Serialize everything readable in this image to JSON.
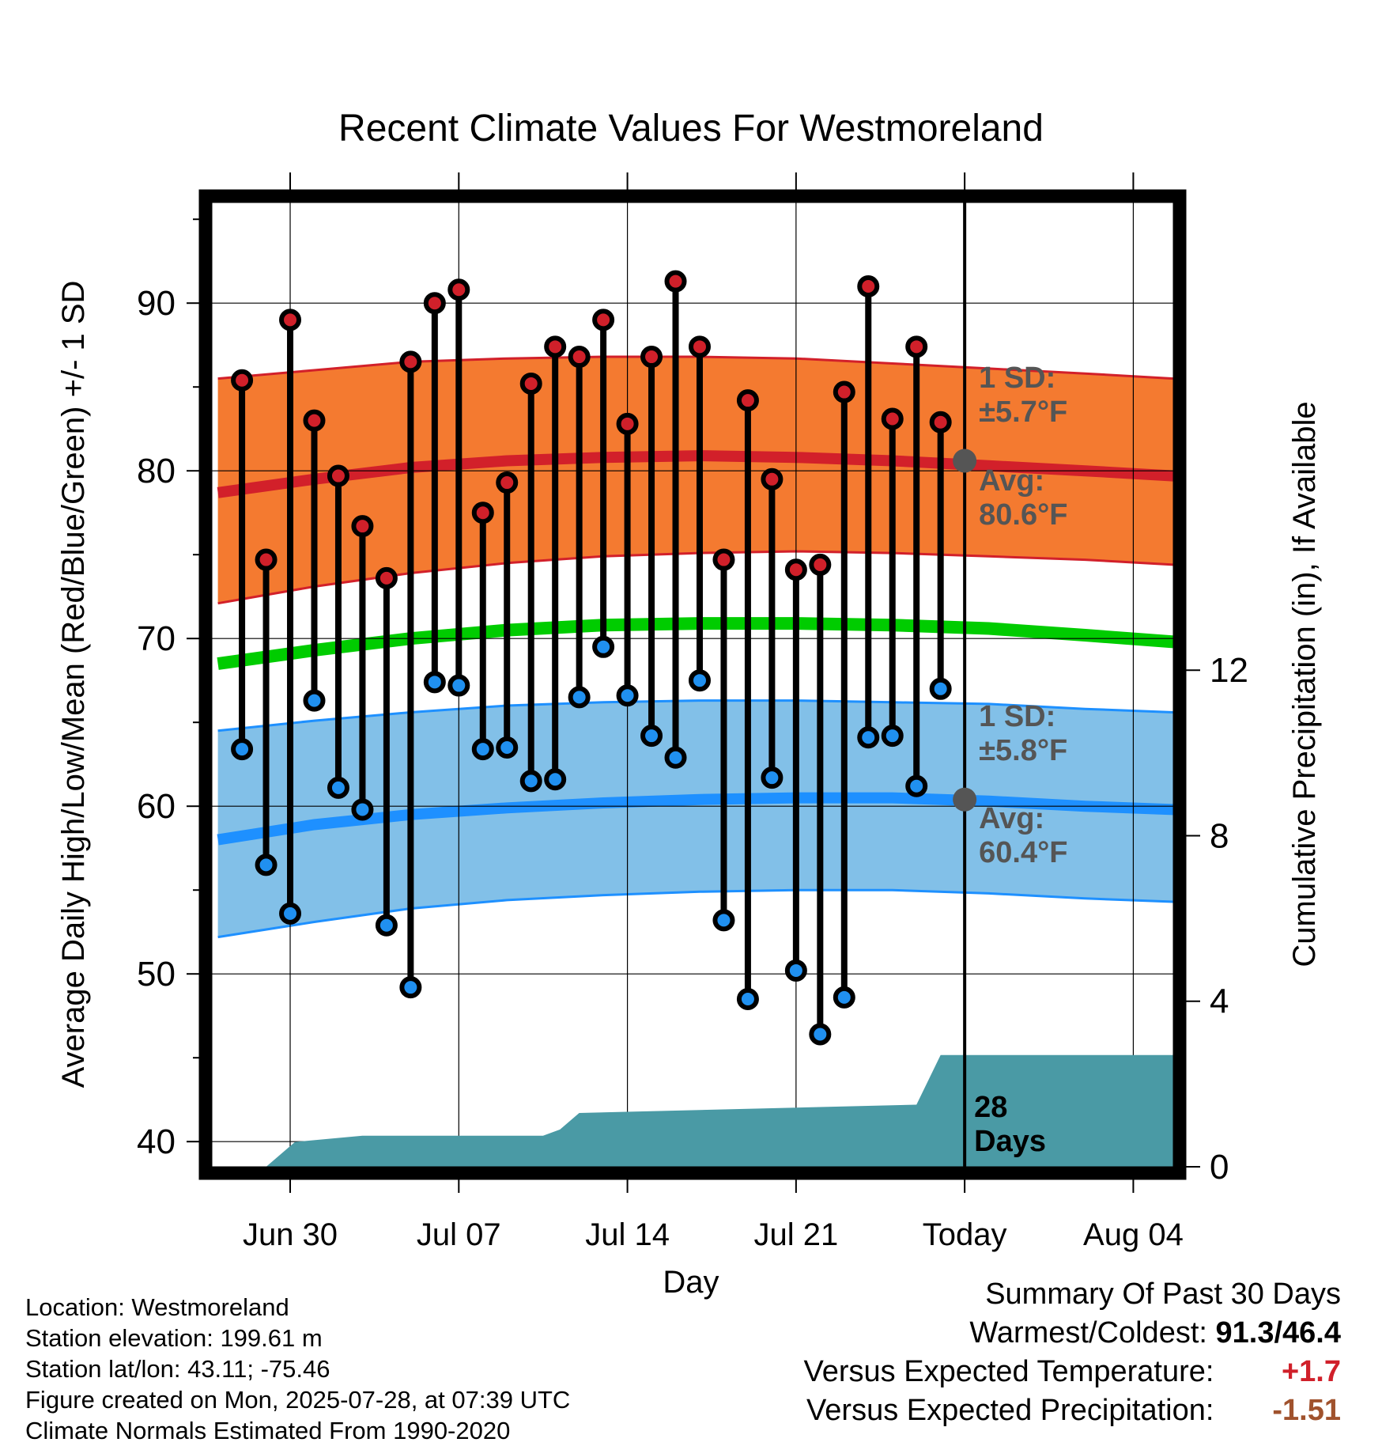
{
  "chart_data": {
    "type": "line",
    "title": "Recent Climate Values For Westmoreland",
    "xlabel": "Day",
    "ylabel": "Average Daily High/Low/Mean (Red/Blue/Green) +/- 1 SD",
    "y2label": "Cumulative Precipitation (in), If Available",
    "ylim": [
      38.5,
      96
    ],
    "y2lim": [
      0,
      23.3
    ],
    "yticks": [
      "40",
      "50",
      "60",
      "70",
      "80",
      "90"
    ],
    "y2ticks": [
      "0",
      "4",
      "8",
      "12"
    ],
    "xticks": [
      {
        "day": 3,
        "label": "Jun 30"
      },
      {
        "day": 10,
        "label": "Jul 07"
      },
      {
        "day": 17,
        "label": "Jul 14"
      },
      {
        "day": 24,
        "label": "Jul 21"
      },
      {
        "day": 31,
        "label": "Today"
      },
      {
        "day": 38,
        "label": "Aug 04"
      }
    ],
    "xlim": [
      -0.25,
      39.66
    ],
    "today_day": 31,
    "high_obs": [
      85.4,
      74.7,
      89.0,
      83.0,
      79.7,
      76.7,
      73.6,
      86.5,
      90.0,
      90.8,
      77.5,
      79.3,
      85.2,
      87.4,
      86.8,
      89.0,
      82.8,
      86.8,
      91.3,
      87.4,
      74.7,
      84.2,
      79.5,
      74.1,
      74.4,
      84.7,
      91.0,
      83.1,
      87.4,
      82.9
    ],
    "low_obs": [
      63.4,
      56.5,
      53.6,
      66.3,
      61.1,
      59.8,
      52.9,
      49.2,
      67.4,
      67.2,
      63.4,
      63.5,
      61.5,
      61.6,
      66.5,
      69.5,
      66.6,
      64.2,
      62.9,
      67.5,
      53.2,
      48.5,
      61.7,
      50.2,
      46.4,
      48.6,
      64.1,
      64.2,
      61.2,
      67.0
    ],
    "high_normal": {
      "avg": [
        [
          0,
          78.7
        ],
        [
          4,
          79.5
        ],
        [
          8,
          80.2
        ],
        [
          12,
          80.6
        ],
        [
          16,
          80.8
        ],
        [
          20,
          80.9
        ],
        [
          24,
          80.8
        ],
        [
          28,
          80.6
        ],
        [
          32,
          80.3
        ],
        [
          36,
          80.0
        ],
        [
          39.66,
          79.7
        ]
      ],
      "upper": [
        [
          0,
          85.5
        ],
        [
          4,
          86.0
        ],
        [
          8,
          86.5
        ],
        [
          12,
          86.7
        ],
        [
          16,
          86.8
        ],
        [
          20,
          86.8
        ],
        [
          24,
          86.7
        ],
        [
          28,
          86.4
        ],
        [
          32,
          86.1
        ],
        [
          36,
          85.8
        ],
        [
          39.66,
          85.5
        ]
      ],
      "lower": [
        [
          0,
          72.1
        ],
        [
          4,
          73.1
        ],
        [
          8,
          73.9
        ],
        [
          12,
          74.5
        ],
        [
          16,
          74.9
        ],
        [
          20,
          75.1
        ],
        [
          24,
          75.2
        ],
        [
          28,
          75.1
        ],
        [
          32,
          74.9
        ],
        [
          36,
          74.7
        ],
        [
          39.66,
          74.4
        ]
      ]
    },
    "mean_normal": [
      [
        0,
        68.5
      ],
      [
        4,
        69.3
      ],
      [
        8,
        70.0
      ],
      [
        12,
        70.5
      ],
      [
        16,
        70.8
      ],
      [
        20,
        70.9
      ],
      [
        24,
        70.9
      ],
      [
        28,
        70.8
      ],
      [
        32,
        70.6
      ],
      [
        36,
        70.2
      ],
      [
        39.66,
        69.8
      ]
    ],
    "low_normal": {
      "avg": [
        [
          0,
          58.0
        ],
        [
          4,
          58.9
        ],
        [
          8,
          59.5
        ],
        [
          12,
          59.9
        ],
        [
          16,
          60.2
        ],
        [
          20,
          60.4
        ],
        [
          24,
          60.5
        ],
        [
          28,
          60.5
        ],
        [
          32,
          60.3
        ],
        [
          36,
          60.0
        ],
        [
          39.66,
          59.8
        ]
      ],
      "upper": [
        [
          0,
          64.5
        ],
        [
          4,
          65.1
        ],
        [
          8,
          65.6
        ],
        [
          12,
          66.0
        ],
        [
          16,
          66.2
        ],
        [
          20,
          66.3
        ],
        [
          24,
          66.3
        ],
        [
          28,
          66.2
        ],
        [
          32,
          66.1
        ],
        [
          36,
          65.8
        ],
        [
          39.66,
          65.6
        ]
      ],
      "lower": [
        [
          0,
          52.2
        ],
        [
          4,
          53.1
        ],
        [
          8,
          53.9
        ],
        [
          12,
          54.4
        ],
        [
          16,
          54.7
        ],
        [
          20,
          54.9
        ],
        [
          24,
          55.0
        ],
        [
          28,
          55.0
        ],
        [
          32,
          54.8
        ],
        [
          36,
          54.5
        ],
        [
          39.66,
          54.3
        ]
      ]
    },
    "precip_cumulative": [
      [
        2.0,
        0.0
      ],
      [
        3.2,
        0.6
      ],
      [
        6.0,
        0.75
      ],
      [
        13.5,
        0.75
      ],
      [
        14.2,
        0.9
      ],
      [
        15.0,
        1.3
      ],
      [
        29.0,
        1.5
      ],
      [
        30.0,
        2.7
      ],
      [
        39.66,
        2.7
      ]
    ],
    "annotations": {
      "high_sd": {
        "line1": "1 SD:",
        "line2": "±5.7°F"
      },
      "high_avg": {
        "line1": "Avg:",
        "line2": "80.6°F",
        "value": 80.6
      },
      "low_sd": {
        "line1": "1 SD:",
        "line2": "±5.8°F"
      },
      "low_avg": {
        "line1": "Avg:",
        "line2": "60.4°F",
        "value": 60.4
      },
      "precip_days": {
        "line1": "28",
        "line2": "Days"
      }
    },
    "grid": true,
    "colors": {
      "high_band": "#f47a30",
      "high_line": "#d2202a",
      "mean_line": "#00cc00",
      "low_band": "#82c0e8",
      "low_line": "#1e90ff",
      "precip": "#4a9aa5",
      "high_dot": "#d0202a",
      "low_dot": "#2090f0",
      "annotation": "#555555",
      "grid": "#000000"
    }
  },
  "footer": {
    "location": "Location: Westmoreland",
    "elevation": "Station elevation: 199.61 m",
    "latlon": "Station lat/lon: 43.11; -75.46",
    "created": "Figure created on Mon, 2025-07-28, at 07:39 UTC",
    "normals": "Climate Normals Estimated From 1990-2020"
  },
  "summary": {
    "title": "Summary Of Past 30 Days",
    "warm_cold_label": "Warmest/Coldest:",
    "warm_cold_value": "91.3/46.4",
    "temp_label": "Versus Expected Temperature:",
    "temp_value": "+1.7",
    "precip_label": "Versus Expected Precipitation:",
    "precip_value": "-1.51"
  }
}
